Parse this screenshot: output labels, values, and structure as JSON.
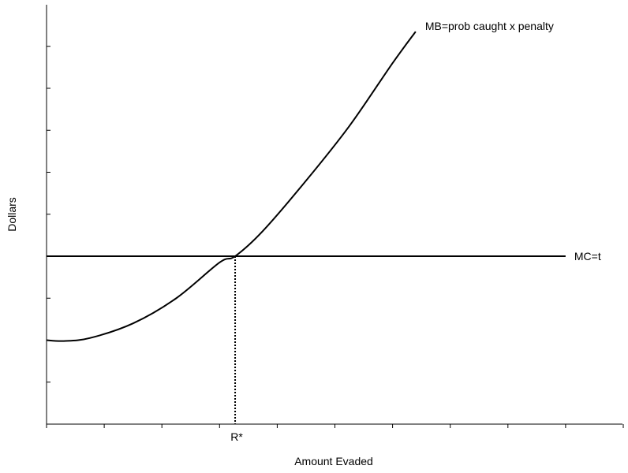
{
  "chart_data": {
    "type": "line",
    "xlabel": "Amount Evaded",
    "ylabel": "Dollars",
    "xlim": [
      0,
      10
    ],
    "ylim": [
      0,
      10
    ],
    "x_tick_values": [
      0,
      1,
      2,
      3,
      4,
      5,
      6,
      7,
      8,
      9,
      10
    ],
    "y_tick_values": [
      0,
      1,
      2,
      3,
      4,
      5,
      6,
      7,
      8,
      9
    ],
    "grid": false,
    "legend": "none",
    "series": [
      {
        "name": "MB=prob caught x penalty",
        "label_position": "end",
        "x": [
          0,
          0.3,
          0.75,
          1.5,
          2.25,
          3.0,
          3.27,
          3.75,
          4.5,
          5.25,
          6.0,
          6.4
        ],
        "y": [
          2.0,
          1.98,
          2.05,
          2.4,
          3.0,
          3.85,
          4.0,
          4.6,
          5.8,
          7.1,
          8.6,
          9.35
        ]
      },
      {
        "name": "MC=t",
        "label_position": "end",
        "x": [
          0,
          9
        ],
        "y": [
          4.0,
          4.0
        ]
      }
    ],
    "annotations": [
      {
        "text": "R*",
        "x": 3.27,
        "y": 4.0,
        "style": "dotted vertical drop line to x-axis"
      }
    ]
  },
  "colors": {
    "background": "#ffffff",
    "ink": "#000000"
  }
}
